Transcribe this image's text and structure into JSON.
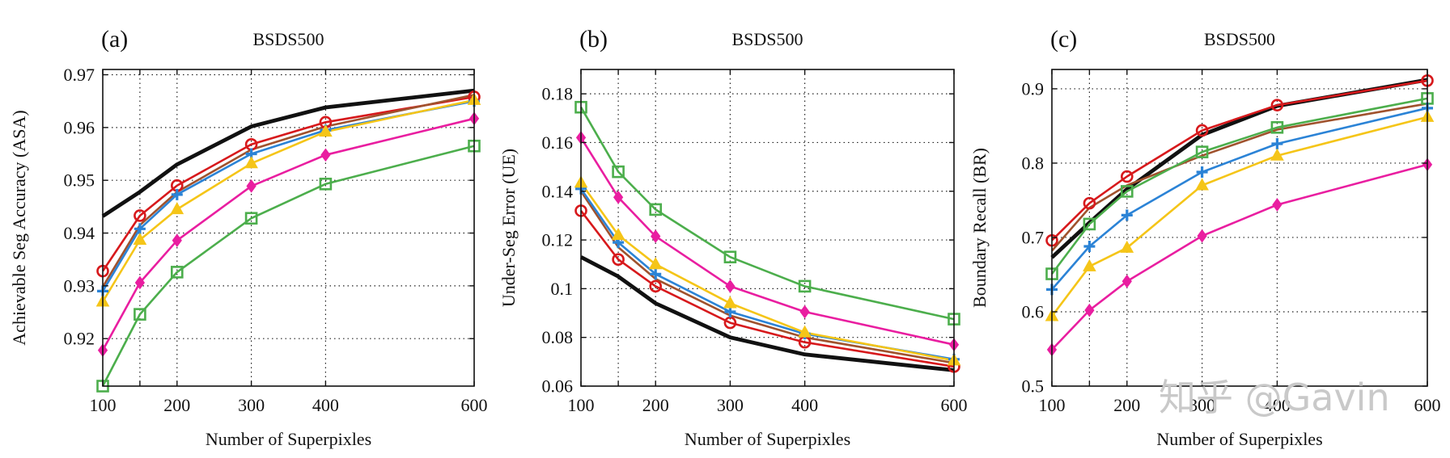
{
  "figure": {
    "watermark": "知乎 @Gavin"
  },
  "chart_data": [
    {
      "type": "line",
      "panel": "(a)",
      "title": "BSDS500",
      "xlabel": "Number of Superpixles",
      "ylabel": "Achievable Seg Accuracy (ASA)",
      "x": [
        100,
        150,
        200,
        300,
        400,
        600
      ],
      "xticks": [
        100,
        200,
        300,
        400,
        600
      ],
      "yticks": [
        0.92,
        0.93,
        0.94,
        0.95,
        0.96,
        0.97
      ],
      "ylim": [
        0.911,
        0.971
      ],
      "grid": true,
      "series": [
        {
          "name": "black",
          "color": "#111111",
          "marker": "none",
          "values": [
            0.9432,
            0.9478,
            0.953,
            0.9602,
            0.9638,
            0.967
          ]
        },
        {
          "name": "red",
          "color": "#d7191c",
          "marker": "circle",
          "values": [
            0.9328,
            0.9433,
            0.949,
            0.9568,
            0.961,
            0.9658
          ]
        },
        {
          "name": "brown",
          "color": "#a0522d",
          "marker": "none",
          "values": [
            0.9298,
            0.9415,
            0.9478,
            0.9558,
            0.9602,
            0.9662
          ]
        },
        {
          "name": "blue",
          "color": "#2b83d6",
          "marker": "plus",
          "values": [
            0.929,
            0.9408,
            0.9473,
            0.955,
            0.9595,
            0.965
          ]
        },
        {
          "name": "yellow",
          "color": "#f5c518",
          "marker": "triangle",
          "values": [
            0.927,
            0.9387,
            0.9445,
            0.9532,
            0.9592,
            0.9652
          ]
        },
        {
          "name": "magenta",
          "color": "#e91ea0",
          "marker": "diamond",
          "values": [
            0.9178,
            0.9306,
            0.9386,
            0.9489,
            0.9548,
            0.9617
          ]
        },
        {
          "name": "green",
          "color": "#4cae4c",
          "marker": "square",
          "values": [
            0.911,
            0.9246,
            0.9326,
            0.9428,
            0.9493,
            0.9565
          ]
        }
      ]
    },
    {
      "type": "line",
      "panel": "(b)",
      "title": "BSDS500",
      "xlabel": "Number of Superpixles",
      "ylabel": "Under-Seg Error (UE)",
      "x": [
        100,
        150,
        200,
        300,
        400,
        600
      ],
      "xticks": [
        100,
        200,
        300,
        400,
        600
      ],
      "ytick_labels": [
        "0.06",
        "0.08",
        "0.1",
        "0.12",
        "0.14",
        "0.16",
        "0.18"
      ],
      "yticks": [
        0.06,
        0.08,
        0.1,
        0.12,
        0.14,
        0.16,
        0.18
      ],
      "ylim": [
        0.06,
        0.19
      ],
      "grid": true,
      "series": [
        {
          "name": "black",
          "color": "#111111",
          "marker": "none",
          "values": [
            0.113,
            0.105,
            0.094,
            0.08,
            0.073,
            0.0665
          ]
        },
        {
          "name": "red",
          "color": "#d7191c",
          "marker": "circle",
          "values": [
            0.132,
            0.112,
            0.101,
            0.086,
            0.078,
            0.068
          ]
        },
        {
          "name": "brown",
          "color": "#a0522d",
          "marker": "none",
          "values": [
            0.14,
            0.117,
            0.104,
            0.089,
            0.08,
            0.0695
          ]
        },
        {
          "name": "blue",
          "color": "#2b83d6",
          "marker": "plus",
          "values": [
            0.141,
            0.119,
            0.106,
            0.0905,
            0.0815,
            0.071
          ]
        },
        {
          "name": "yellow",
          "color": "#f5c518",
          "marker": "triangle",
          "values": [
            0.1435,
            0.122,
            0.11,
            0.094,
            0.082,
            0.0705
          ]
        },
        {
          "name": "magenta",
          "color": "#e91ea0",
          "marker": "diamond",
          "values": [
            0.162,
            0.1375,
            0.1215,
            0.101,
            0.0905,
            0.077
          ]
        },
        {
          "name": "green",
          "color": "#4cae4c",
          "marker": "square",
          "values": [
            0.1745,
            0.148,
            0.1325,
            0.113,
            0.101,
            0.0875
          ]
        }
      ]
    },
    {
      "type": "line",
      "panel": "(c)",
      "title": "BSDS500",
      "xlabel": "Number of Superpixles",
      "ylabel": "Boundary Recall (BR)",
      "x": [
        100,
        150,
        200,
        300,
        400,
        600
      ],
      "xticks": [
        100,
        200,
        300,
        400,
        600
      ],
      "ytick_labels": [
        "0.5",
        "0.6",
        "0.7",
        "0.8",
        "0.9"
      ],
      "yticks": [
        0.5,
        0.6,
        0.7,
        0.8,
        0.9
      ],
      "ylim": [
        0.5,
        0.926
      ],
      "grid": true,
      "series": [
        {
          "name": "black",
          "color": "#111111",
          "marker": "none",
          "values": [
            0.673,
            0.72,
            0.765,
            0.838,
            0.877,
            0.912
          ]
        },
        {
          "name": "red",
          "color": "#d7191c",
          "marker": "circle",
          "values": [
            0.696,
            0.746,
            0.782,
            0.844,
            0.878,
            0.911
          ]
        },
        {
          "name": "brown",
          "color": "#a0522d",
          "marker": "none",
          "values": [
            0.682,
            0.74,
            0.77,
            0.81,
            0.845,
            0.88
          ]
        },
        {
          "name": "green",
          "color": "#4cae4c",
          "marker": "square",
          "values": [
            0.651,
            0.718,
            0.762,
            0.815,
            0.848,
            0.887
          ]
        },
        {
          "name": "blue",
          "color": "#2b83d6",
          "marker": "plus",
          "values": [
            0.63,
            0.688,
            0.73,
            0.788,
            0.826,
            0.874
          ]
        },
        {
          "name": "yellow",
          "color": "#f5c518",
          "marker": "triangle",
          "values": [
            0.594,
            0.661,
            0.686,
            0.77,
            0.81,
            0.862
          ]
        },
        {
          "name": "magenta",
          "color": "#e91ea0",
          "marker": "diamond",
          "values": [
            0.549,
            0.602,
            0.641,
            0.702,
            0.744,
            0.798
          ]
        }
      ]
    }
  ]
}
